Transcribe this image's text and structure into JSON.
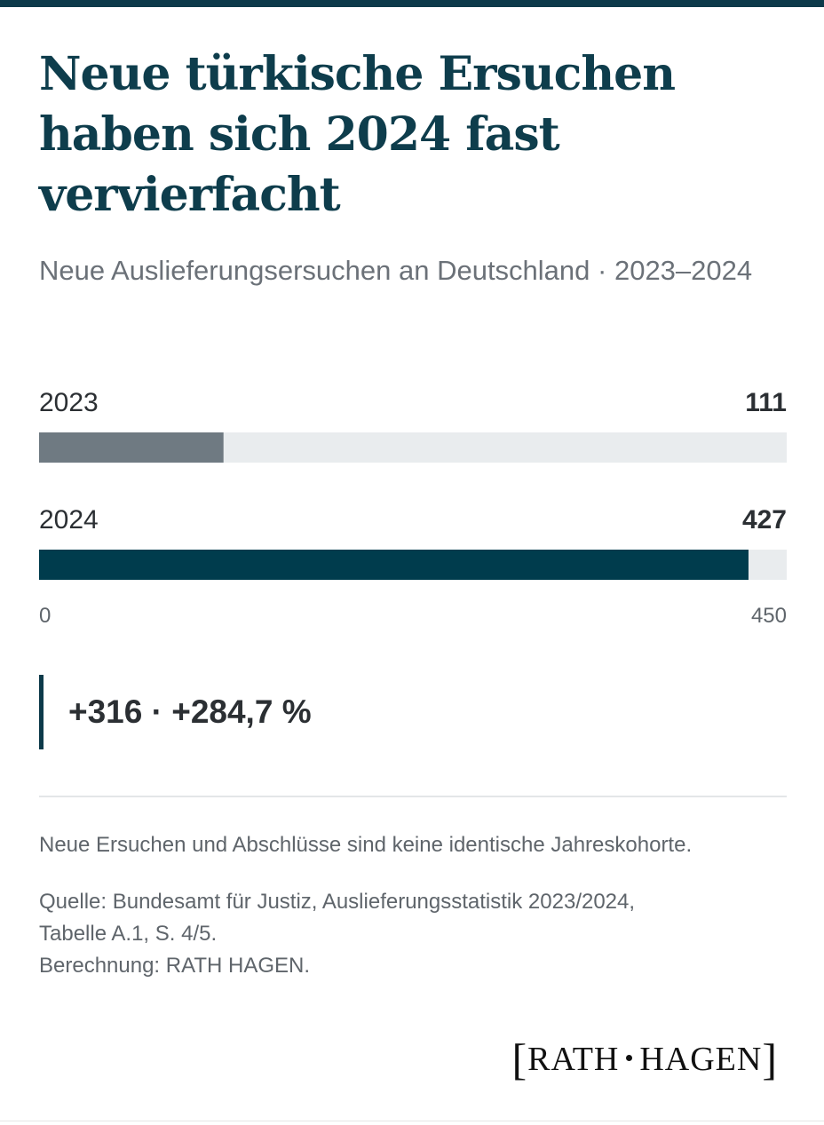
{
  "title": "Neue türkische Ersuchen haben sich 2024 fast vervierfacht",
  "subtitle": "Neue Auslieferungsersuchen an Deutschland · 2023–2024",
  "colors": {
    "accent": "#0d3a4a",
    "bar_2023": "#6f7a82",
    "bar_2024": "#003c4d",
    "track": "#e9ecee"
  },
  "chart_data": {
    "type": "bar",
    "orientation": "horizontal",
    "categories": [
      "2023",
      "2024"
    ],
    "values": [
      111,
      427
    ],
    "value_labels": [
      "111",
      "427"
    ],
    "xlim": [
      0,
      450
    ],
    "tick_labels": [
      "0",
      "450"
    ],
    "title": "Neue türkische Ersuchen haben sich 2024 fast vervierfacht",
    "subtitle": "Neue Auslieferungsersuchen an Deutschland · 2023–2024",
    "grid": false,
    "legend": "none"
  },
  "delta": {
    "text": "+316 · +284,7 %"
  },
  "note": "Neue Ersuchen und Abschlüsse sind keine identische Jahreskohorte.",
  "source": {
    "line1": "Quelle: Bundesamt für Justiz, Auslieferungsstatistik 2023/2024,",
    "line2": "Tabelle A.1, S. 4/5.",
    "line3": "Berechnung: RATH HAGEN."
  },
  "logo": {
    "left": "RATH",
    "right": "HAGEN",
    "open_bracket": "[",
    "close_bracket": "]"
  }
}
